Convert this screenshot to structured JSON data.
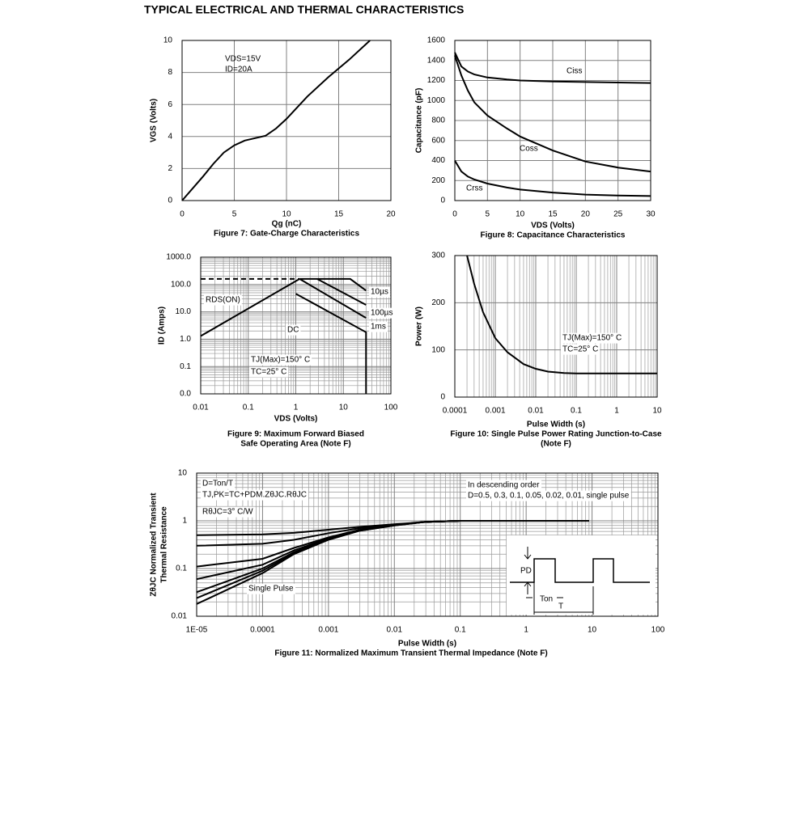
{
  "page_title": "TYPICAL ELECTRICAL AND THERMAL CHARACTERISTICS",
  "chart_data": [
    {
      "type": "line",
      "title": "Figure 7: Gate-Charge Characteristics",
      "x_label": "Qg (nC)",
      "y_label": "VGS (Volts)",
      "annotations": [
        "VDS=15V",
        "ID=20A"
      ],
      "x": [
        0,
        2,
        3,
        4,
        5,
        6,
        7,
        8,
        9,
        10,
        12,
        14,
        16,
        18
      ],
      "series": [
        {
          "color": "#000000",
          "values": [
            0,
            1.5,
            2.3,
            3.0,
            3.45,
            3.75,
            3.9,
            4.05,
            4.5,
            5.1,
            6.5,
            7.7,
            8.8,
            10
          ]
        }
      ],
      "xlim": [
        0,
        20
      ],
      "xticks": [
        0,
        5,
        10,
        15,
        20
      ],
      "ylim": [
        0,
        10
      ],
      "yticks": [
        0,
        2,
        4,
        6,
        8,
        10
      ],
      "grid": true
    },
    {
      "type": "line",
      "title": "Figure 8: Capacitance Characteristics",
      "x_label": "VDS (Volts)",
      "y_label": "Capacitance (pF)",
      "x": [
        0,
        1,
        2,
        3,
        5,
        8,
        10,
        15,
        20,
        25,
        30
      ],
      "series": [
        {
          "name": "Ciss",
          "color": "#000000",
          "values": [
            1480,
            1340,
            1290,
            1260,
            1230,
            1210,
            1200,
            1190,
            1185,
            1180,
            1175
          ]
        },
        {
          "name": "Coss",
          "color": "#000000",
          "values": [
            1450,
            1250,
            1100,
            980,
            850,
            720,
            640,
            500,
            390,
            330,
            290
          ]
        },
        {
          "name": "Crss",
          "color": "#000000",
          "values": [
            400,
            290,
            240,
            210,
            170,
            130,
            110,
            80,
            60,
            50,
            45
          ]
        }
      ],
      "xlim": [
        0,
        30
      ],
      "xticks": [
        0,
        5,
        10,
        15,
        20,
        25,
        30
      ],
      "ylim": [
        0,
        1600
      ],
      "yticks": [
        0,
        200,
        400,
        600,
        800,
        1000,
        1200,
        1400,
        1600
      ],
      "grid": true
    },
    {
      "type": "line",
      "title": [
        "Figure 9: Maximum Forward Biased",
        "Safe Operating Area (Note F)"
      ],
      "x_label": "VDS (Volts)",
      "y_label": "ID (Amps)",
      "annotations": [
        "TJ(Max)=150° C",
        "TC=25° C"
      ],
      "series": [
        {
          "name": "RDS(ON)",
          "color": "#000000",
          "x": [
            0.01,
            1.2
          ],
          "values": [
            1.3,
            160
          ]
        },
        {
          "color": "#000000",
          "dash": true,
          "x": [
            0.01,
            1.2
          ],
          "values": [
            160,
            160
          ]
        },
        {
          "name": "10µs",
          "color": "#000000",
          "x": [
            1.2,
            14,
            30
          ],
          "values": [
            160,
            160,
            60
          ]
        },
        {
          "name": "100µs",
          "color": "#000000",
          "x": [
            2.8,
            30
          ],
          "values": [
            160,
            18
          ]
        },
        {
          "name": "1ms",
          "color": "#000000",
          "x": [
            1.2,
            30
          ],
          "values": [
            160,
            6
          ]
        },
        {
          "name": "DC",
          "color": "#000000",
          "x": [
            1,
            30,
            30
          ],
          "values": [
            46,
            1.8,
            0.01
          ]
        }
      ],
      "xlim": [
        0.01,
        100
      ],
      "xticks": [
        0.01,
        0.1,
        1,
        10,
        100
      ],
      "xlog": true,
      "ylim": [
        0.01,
        1000
      ],
      "yticks": [
        {
          "value": 0.01,
          "label": "0.0"
        },
        0.1,
        {
          "value": 1,
          "label": "1.0"
        },
        {
          "value": 10,
          "label": "10.0"
        },
        {
          "value": 100,
          "label": "100.0"
        },
        {
          "value": 1000,
          "label": "1000.0"
        }
      ],
      "ylog": true,
      "grid": true,
      "minor_grid": true
    },
    {
      "type": "line",
      "title": [
        "Figure 10: Single Pulse Power Rating Junction-to-Case",
        "(Note F)"
      ],
      "x_label": "Pulse Width (s)",
      "y_label": "Power (W)",
      "annotations": [
        "TJ(Max)=150° C",
        "TC=25° C"
      ],
      "x": [
        0.0002,
        0.0003,
        0.0005,
        0.001,
        0.002,
        0.005,
        0.01,
        0.02,
        0.05,
        0.1,
        1,
        10
      ],
      "series": [
        {
          "color": "#000000",
          "values": [
            300,
            240,
            180,
            125,
            95,
            70,
            60,
            54,
            51,
            50,
            50,
            50
          ]
        }
      ],
      "xlim": [
        0.0001,
        10
      ],
      "xticks": [
        0.0001,
        0.001,
        0.01,
        0.1,
        1,
        10
      ],
      "xlog": true,
      "ylim": [
        0,
        300
      ],
      "yticks": [
        0,
        100,
        200,
        300
      ],
      "grid": true,
      "minor_grid": true
    },
    {
      "type": "line",
      "title": "Figure 11: Normalized Maximum Transient Thermal Impedance (Note F)",
      "x_label": "Pulse Width (s)",
      "y_label": [
        "ZθJC Normalized Transient",
        "Thermal Resistance"
      ],
      "annotations": [
        "D=Ton/T",
        "TJ,PK=TC+PDM.ZθJC.RθJC",
        "RθJC=3° C/W",
        "In descending order",
        "D=0.5, 0.3, 0.1, 0.05, 0.02, 0.01, single pulse",
        "Single Pulse"
      ],
      "inset_labels": [
        "PD",
        "Ton",
        "T"
      ],
      "x": [
        1e-05,
        0.0001,
        0.0003,
        0.001,
        0.003,
        0.01,
        0.03,
        0.1,
        1,
        9
      ],
      "series": [
        {
          "color": "#000000",
          "values": [
            0.5,
            0.52,
            0.56,
            0.65,
            0.75,
            0.85,
            0.95,
            1,
            1,
            1
          ]
        },
        {
          "color": "#000000",
          "values": [
            0.3,
            0.33,
            0.4,
            0.55,
            0.7,
            0.83,
            0.95,
            1,
            1,
            1
          ]
        },
        {
          "color": "#000000",
          "values": [
            0.11,
            0.16,
            0.27,
            0.45,
            0.65,
            0.82,
            0.95,
            1,
            1,
            1
          ]
        },
        {
          "color": "#000000",
          "values": [
            0.06,
            0.12,
            0.24,
            0.43,
            0.64,
            0.81,
            0.95,
            1,
            1,
            1
          ]
        },
        {
          "color": "#000000",
          "values": [
            0.032,
            0.1,
            0.22,
            0.42,
            0.63,
            0.81,
            0.95,
            1,
            1,
            1
          ]
        },
        {
          "color": "#000000",
          "values": [
            0.024,
            0.09,
            0.21,
            0.41,
            0.62,
            0.8,
            0.95,
            1,
            1,
            1
          ]
        },
        {
          "color": "#000000",
          "values": [
            0.018,
            0.08,
            0.2,
            0.4,
            0.62,
            0.8,
            0.95,
            1,
            1,
            1
          ]
        }
      ],
      "xlim": [
        1e-05,
        100
      ],
      "xticks": [
        {
          "value": 1e-05,
          "label": "1E-05"
        },
        0.0001,
        0.001,
        0.01,
        0.1,
        1,
        10,
        100
      ],
      "xlog": true,
      "ylim": [
        0.01,
        10
      ],
      "yticks": [
        0.01,
        0.1,
        1,
        10
      ],
      "ylog": true,
      "grid": true,
      "minor_grid": true
    }
  ]
}
